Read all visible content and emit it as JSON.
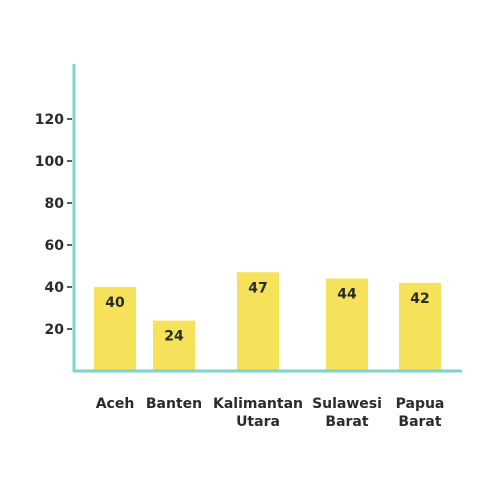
{
  "chart_data": {
    "type": "bar",
    "categories": [
      [
        "Aceh"
      ],
      [
        "Banten"
      ],
      [
        "Kalimantan",
        "Utara"
      ],
      [
        "Sulawesi",
        "Barat"
      ],
      [
        "Papua",
        "Barat"
      ]
    ],
    "values": [
      40,
      24,
      47,
      44,
      42
    ],
    "yticks": [
      20,
      40,
      60,
      80,
      100,
      120
    ],
    "ylim": [
      0,
      135
    ],
    "grid": false,
    "legend": "none",
    "colors": {
      "bar": "#f5e15a",
      "axis": "#7fd3cc",
      "text": "#2b2b2b"
    }
  }
}
